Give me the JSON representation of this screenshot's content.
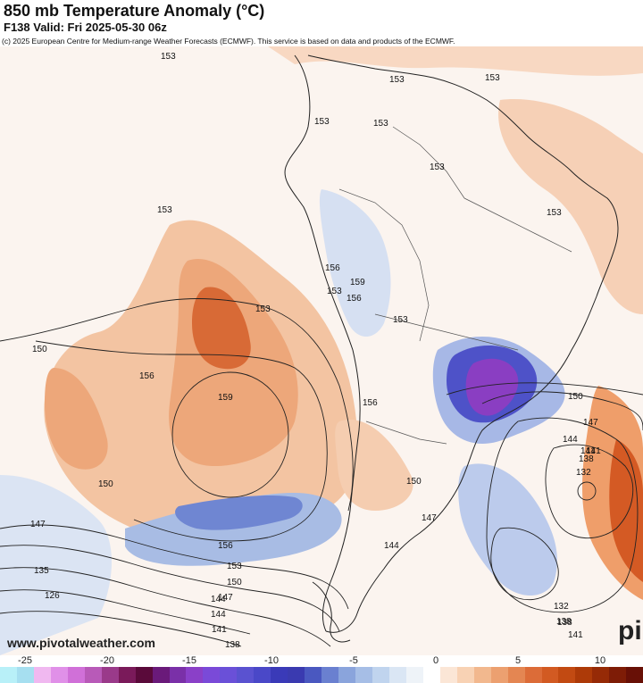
{
  "header": {
    "title": "850 mb Temperature Anomaly (°C)",
    "subtitle": "F138 Valid: Fri 2025-05-30 06z",
    "credit": "(c) 2025 European Centre for Medium-range Weather Forecasts (ECMWF). This service is based on data and products of the ECMWF."
  },
  "watermark": "www.pivotalweather.com",
  "logo_text": "pi",
  "colorbar": {
    "ticks": [
      "-25",
      "-20",
      "-15",
      "-10",
      "-5",
      "0",
      "5",
      "10"
    ],
    "colors": [
      "#b8f0f8",
      "#a6dff0",
      "#f0b8f0",
      "#e090e8",
      "#d070d8",
      "#b85ab8",
      "#9a3a8a",
      "#7a1a5a",
      "#5a0a3a",
      "#6a1a7a",
      "#7a30a8",
      "#8a40c8",
      "#7a4ad8",
      "#6a50d8",
      "#5a52d0",
      "#4a48c8",
      "#3a3ab8",
      "#3a3ab0",
      "#4a58c0",
      "#6a80d0",
      "#8aa4dc",
      "#a6bee6",
      "#c0d4ee",
      "#dae6f4",
      "#eef3f8",
      "#ffffff",
      "#fbe6d6",
      "#f8d2b4",
      "#f2b88e",
      "#eca070",
      "#e48652",
      "#dc6c38",
      "#d25a22",
      "#c24a12",
      "#ad3a08",
      "#962a06",
      "#7e1c06",
      "#681006"
    ]
  },
  "contour_labels": [
    "153",
    "153",
    "153",
    "153",
    "153",
    "153",
    "153",
    "153",
    "156",
    "159",
    "153",
    "156",
    "153",
    "153",
    "156",
    "159",
    "156",
    "150",
    "150",
    "147",
    "144",
    "141",
    "138",
    "132",
    "150",
    "147",
    "144",
    "141",
    "138",
    "135",
    "126",
    "156",
    "153",
    "150",
    "147",
    "144",
    "141",
    "138",
    "150",
    "147",
    "144",
    "138",
    "132",
    "141"
  ]
}
